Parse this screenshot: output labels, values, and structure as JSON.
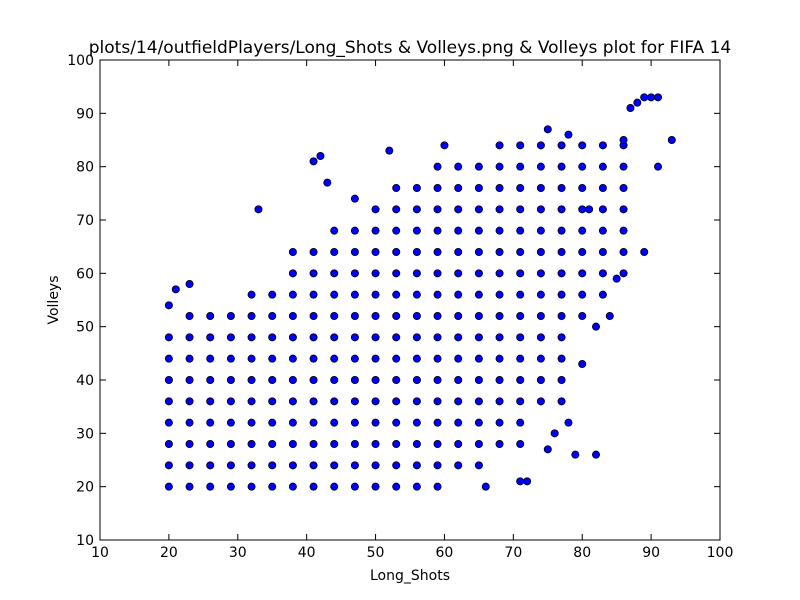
{
  "chart_data": {
    "type": "scatter",
    "title": "plots/14/outfieldPlayers/Long_Shots & Volleys.png & Volleys plot for FIFA 14",
    "xlabel": "Long_Shots",
    "ylabel": "Volleys",
    "color": "#0000ff",
    "grid": false,
    "xlim": [
      10,
      100
    ],
    "ylim": [
      10,
      100
    ],
    "xticks": [
      10,
      20,
      30,
      40,
      50,
      60,
      70,
      80,
      90,
      100
    ],
    "yticks": [
      10,
      20,
      30,
      40,
      50,
      60,
      70,
      80,
      90,
      100
    ],
    "x": [
      20,
      20,
      20,
      20,
      20,
      20,
      20,
      20,
      23,
      23,
      23,
      23,
      23,
      23,
      23,
      23,
      23,
      26,
      26,
      26,
      26,
      26,
      26,
      26,
      26,
      26,
      29,
      29,
      29,
      29,
      29,
      29,
      29,
      29,
      29,
      32,
      32,
      32,
      32,
      32,
      32,
      32,
      32,
      32,
      32,
      35,
      35,
      35,
      35,
      35,
      35,
      35,
      35,
      35,
      35,
      38,
      38,
      38,
      38,
      38,
      38,
      38,
      38,
      38,
      38,
      38,
      38,
      41,
      41,
      41,
      41,
      41,
      41,
      41,
      41,
      41,
      41,
      41,
      41,
      44,
      44,
      44,
      44,
      44,
      44,
      44,
      44,
      44,
      44,
      44,
      44,
      44,
      47,
      47,
      47,
      47,
      47,
      47,
      47,
      47,
      47,
      47,
      47,
      47,
      47,
      50,
      50,
      50,
      50,
      50,
      50,
      50,
      50,
      50,
      50,
      50,
      50,
      50,
      50,
      53,
      53,
      53,
      53,
      53,
      53,
      53,
      53,
      53,
      53,
      53,
      53,
      53,
      53,
      53,
      56,
      56,
      56,
      56,
      56,
      56,
      56,
      56,
      56,
      56,
      56,
      56,
      56,
      56,
      56,
      59,
      59,
      59,
      59,
      59,
      59,
      59,
      59,
      59,
      59,
      59,
      59,
      59,
      59,
      59,
      59,
      62,
      62,
      62,
      62,
      62,
      62,
      62,
      62,
      62,
      62,
      62,
      62,
      62,
      62,
      62,
      65,
      65,
      65,
      65,
      65,
      65,
      65,
      65,
      65,
      65,
      65,
      65,
      65,
      65,
      65,
      68,
      68,
      68,
      68,
      68,
      68,
      68,
      68,
      68,
      68,
      68,
      68,
      68,
      68,
      68,
      71,
      71,
      71,
      71,
      71,
      71,
      71,
      71,
      71,
      71,
      71,
      71,
      71,
      71,
      71,
      74,
      74,
      74,
      74,
      74,
      74,
      74,
      74,
      74,
      74,
      74,
      74,
      74,
      77,
      77,
      77,
      77,
      77,
      77,
      77,
      77,
      77,
      77,
      77,
      77,
      80,
      80,
      80,
      80,
      80,
      80,
      80,
      80,
      80,
      83,
      83,
      83,
      83,
      83,
      83,
      83,
      83,
      86,
      86,
      86,
      86,
      86,
      86,
      86,
      89,
      90,
      91,
      93,
      88,
      87,
      91,
      89,
      82,
      79,
      66,
      72,
      71,
      20,
      21,
      23,
      33,
      41,
      42,
      43,
      47,
      52,
      60,
      75,
      78,
      86,
      81,
      85,
      84,
      82,
      80,
      78,
      75,
      76,
      77
    ],
    "values": [
      20,
      24,
      28,
      32,
      36,
      40,
      44,
      48,
      20,
      24,
      28,
      32,
      36,
      40,
      44,
      48,
      52,
      20,
      24,
      28,
      32,
      36,
      40,
      44,
      48,
      52,
      20,
      24,
      28,
      32,
      36,
      40,
      44,
      48,
      52,
      20,
      24,
      28,
      32,
      36,
      40,
      44,
      48,
      52,
      56,
      20,
      24,
      28,
      32,
      36,
      40,
      44,
      48,
      52,
      56,
      20,
      24,
      28,
      32,
      36,
      40,
      44,
      48,
      52,
      56,
      60,
      64,
      20,
      24,
      28,
      32,
      36,
      40,
      44,
      48,
      52,
      56,
      60,
      64,
      20,
      24,
      28,
      32,
      36,
      40,
      44,
      48,
      52,
      56,
      60,
      64,
      68,
      20,
      24,
      28,
      32,
      36,
      40,
      44,
      48,
      52,
      56,
      60,
      64,
      68,
      20,
      24,
      28,
      32,
      36,
      40,
      44,
      48,
      52,
      56,
      60,
      64,
      68,
      72,
      20,
      24,
      28,
      32,
      36,
      40,
      44,
      48,
      52,
      56,
      60,
      64,
      68,
      72,
      76,
      20,
      24,
      28,
      32,
      36,
      40,
      44,
      48,
      52,
      56,
      60,
      64,
      68,
      72,
      76,
      20,
      24,
      28,
      32,
      36,
      40,
      44,
      48,
      52,
      56,
      60,
      64,
      68,
      72,
      76,
      80,
      24,
      28,
      32,
      36,
      40,
      44,
      48,
      52,
      56,
      60,
      64,
      68,
      72,
      76,
      80,
      24,
      28,
      32,
      36,
      40,
      44,
      48,
      52,
      56,
      60,
      64,
      68,
      72,
      76,
      80,
      28,
      32,
      36,
      40,
      44,
      48,
      52,
      56,
      60,
      64,
      68,
      72,
      76,
      80,
      84,
      28,
      32,
      36,
      40,
      44,
      48,
      52,
      56,
      60,
      64,
      68,
      72,
      76,
      80,
      84,
      36,
      40,
      44,
      48,
      52,
      56,
      60,
      64,
      68,
      72,
      76,
      80,
      84,
      40,
      44,
      48,
      52,
      56,
      60,
      64,
      68,
      72,
      76,
      80,
      84,
      52,
      56,
      60,
      64,
      68,
      72,
      76,
      80,
      84,
      56,
      60,
      64,
      68,
      72,
      76,
      80,
      84,
      60,
      64,
      68,
      72,
      76,
      80,
      84,
      93,
      93,
      93,
      85,
      92,
      91,
      80,
      64,
      26,
      26,
      20,
      21,
      21,
      54,
      57,
      58,
      72,
      81,
      82,
      77,
      74,
      83,
      84,
      87,
      86,
      85,
      72,
      59,
      52,
      50,
      43,
      32,
      27,
      30,
      36
    ]
  }
}
